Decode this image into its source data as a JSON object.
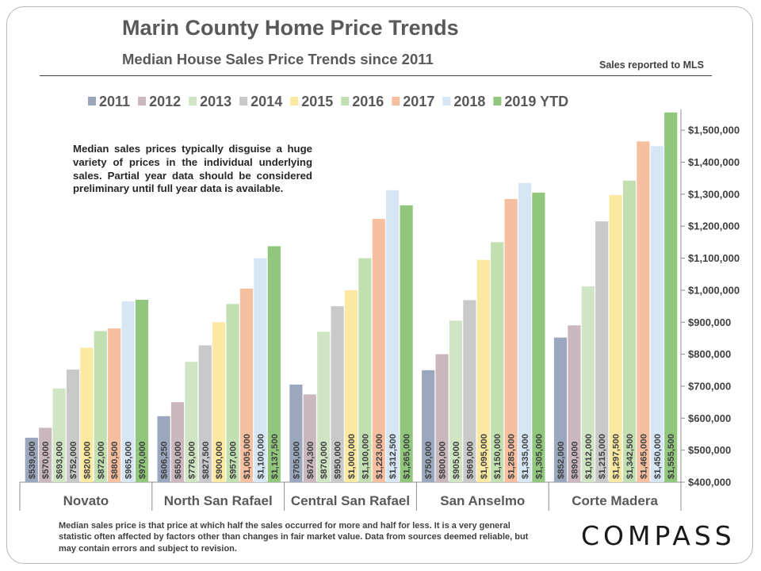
{
  "header": {
    "title": "Marin County Home Price Trends",
    "subtitle": "Median House Sales Price Trends since 2011",
    "source_note": "Sales reported to MLS"
  },
  "annotation": "Median sales prices typically disguise a huge variety of prices in the individual underlying sales. Partial year data should be considered preliminary until full year data is available.",
  "footnote": "Median sales price is that price at which half the sales occurred for more and half for less. It is a very general statistic often affected by factors other than changes in fair market value. Data from sources deemed reliable, but may contain errors and subject to revision.",
  "logo_text": "COMPASS",
  "chart_data": {
    "type": "bar",
    "categories": [
      "Novato",
      "North San Rafael",
      "Central San Rafael",
      "San Anselmo",
      "Corte Madera"
    ],
    "ylim": [
      400000,
      1550000
    ],
    "yticks": [
      {
        "value": 400000,
        "label": "$400,000"
      },
      {
        "value": 500000,
        "label": "$500,000"
      },
      {
        "value": 600000,
        "label": "$600,000"
      },
      {
        "value": 700000,
        "label": "$700,000"
      },
      {
        "value": 800000,
        "label": "$800,000"
      },
      {
        "value": 900000,
        "label": "$900,000"
      },
      {
        "value": 1000000,
        "label": "$1,000,000"
      },
      {
        "value": 1100000,
        "label": "$1,100,000"
      },
      {
        "value": 1200000,
        "label": "$1,200,000"
      },
      {
        "value": 1300000,
        "label": "$1,300,000"
      },
      {
        "value": 1400000,
        "label": "$1,400,000"
      },
      {
        "value": 1500000,
        "label": "$1,500,000"
      }
    ],
    "axis_position": "right",
    "legend_position": "top",
    "series": [
      {
        "name": "2011",
        "color": "#9aa7bd",
        "values": [
          539000,
          606250,
          705000,
          750000,
          852000
        ],
        "labels": [
          "$539,000",
          "$606,250",
          "$705,000",
          "$750,000",
          "$852,000"
        ]
      },
      {
        "name": "2012",
        "color": "#cbb8be",
        "values": [
          570000,
          650000,
          674300,
          800000,
          890000
        ],
        "labels": [
          "$570,000",
          "$650,000",
          "$674,300",
          "$800,000",
          "$890,000"
        ]
      },
      {
        "name": "2013",
        "color": "#cfe5c4",
        "values": [
          693000,
          776000,
          870000,
          905000,
          1012000
        ],
        "labels": [
          "$693,000",
          "$776,000",
          "$870,000",
          "$905,000",
          "$1,012,000"
        ]
      },
      {
        "name": "2014",
        "color": "#c9c9c9",
        "values": [
          752000,
          827500,
          950000,
          969000,
          1215000
        ],
        "labels": [
          "$752,000",
          "$827,500",
          "$950,000",
          "$969,000",
          "$1,215,000"
        ]
      },
      {
        "name": "2015",
        "color": "#fbe8a1",
        "values": [
          820000,
          900000,
          1000000,
          1095000,
          1297500
        ],
        "labels": [
          "$820,000",
          "$900,000",
          "$1,000,000",
          "$1,095,000",
          "$1,297,500"
        ]
      },
      {
        "name": "2016",
        "color": "#c2dfb2",
        "values": [
          872000,
          957000,
          1100000,
          1150000,
          1342500
        ],
        "labels": [
          "$872,000",
          "$957,000",
          "$1,100,000",
          "$1,150,000",
          "$1,342,500"
        ]
      },
      {
        "name": "2017",
        "color": "#f6bf9f",
        "values": [
          880500,
          1005000,
          1223000,
          1285000,
          1465000
        ],
        "labels": [
          "$880,500",
          "$1,005,000",
          "$1,223,000",
          "$1,285,000",
          "$1,465,000"
        ]
      },
      {
        "name": "2018",
        "color": "#d6e6f4",
        "values": [
          965000,
          1100000,
          1312500,
          1335000,
          1450000
        ],
        "labels": [
          "$965,000",
          "$1,100,000",
          "$1,312,500",
          "$1,335,000",
          "$1,450,000"
        ]
      },
      {
        "name": "2019 YTD",
        "color": "#90c77d",
        "values": [
          970000,
          1137500,
          1265000,
          1305000,
          1555500
        ],
        "labels": [
          "$970,000",
          "$1,137,500",
          "$1,265,000",
          "$1,305,000",
          "$1,555,500"
        ]
      }
    ]
  }
}
